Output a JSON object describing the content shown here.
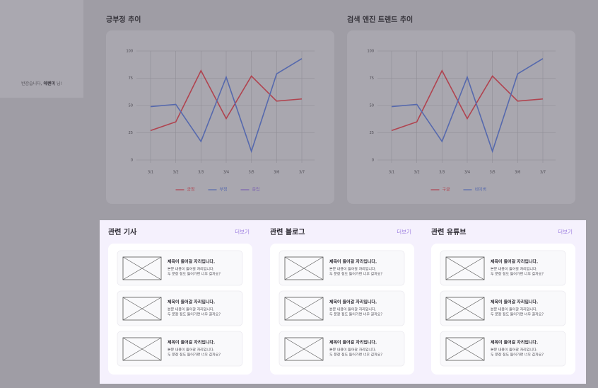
{
  "sidebar": {
    "greeting_prefix": "반갑습니다, ",
    "user_name": "에렌미",
    "greeting_suffix": " 님!"
  },
  "chart_data": [
    {
      "type": "line",
      "title": "긍부정 추이",
      "categories": [
        "3/1",
        "3/2",
        "3/3",
        "3/4",
        "3/5",
        "3/6",
        "3/7"
      ],
      "ylim": [
        0,
        100
      ],
      "yticks": [
        0,
        25,
        50,
        75,
        100
      ],
      "grid": true,
      "legend": "bottom",
      "series": [
        {
          "name": "긍정",
          "color": "#b0434f",
          "values": [
            27,
            35,
            82,
            38,
            77,
            54,
            56
          ]
        },
        {
          "name": "부정",
          "color": "#5669ad",
          "values": [
            49,
            51,
            17,
            76,
            8,
            79,
            93
          ]
        },
        {
          "name": "중립",
          "color": "#7b62b0",
          "values": [
            null,
            null,
            null,
            null,
            null,
            null,
            null
          ]
        }
      ]
    },
    {
      "type": "line",
      "title": "검색 엔진 트렌드 추이",
      "categories": [
        "3/1",
        "3/2",
        "3/3",
        "3/4",
        "3/5",
        "3/6",
        "3/7"
      ],
      "ylim": [
        0,
        100
      ],
      "yticks": [
        0,
        25,
        50,
        75,
        100
      ],
      "grid": true,
      "legend": "bottom",
      "series": [
        {
          "name": "구글",
          "color": "#b0434f",
          "values": [
            27,
            35,
            82,
            38,
            77,
            54,
            56
          ]
        },
        {
          "name": "네이버",
          "color": "#5669ad",
          "values": [
            49,
            51,
            17,
            76,
            8,
            79,
            93
          ]
        }
      ]
    }
  ],
  "sections": [
    {
      "title": "관련 기사",
      "more": "더보기",
      "items": [
        {
          "title": "제목이 들어갈 자리입니다.",
          "body": [
            "본문 내용이 들어갈 자리입니다.",
            "두 문장 정도 들어가면 너무 길까요?"
          ]
        },
        {
          "title": "제목이 들어갈 자리입니다.",
          "body": [
            "본문 내용이 들어갈 자리입니다.",
            "두 문장 정도 들어가면 너무 길까요?"
          ]
        },
        {
          "title": "제목이 들어갈 자리입니다.",
          "body": [
            "본문 내용이 들어갈 자리입니다.",
            "두 문장 정도 들어가면 너무 길까요?"
          ]
        }
      ]
    },
    {
      "title": "관련 블로그",
      "more": "더보기",
      "items": [
        {
          "title": "제목이 들어갈 자리입니다.",
          "body": [
            "본문 내용이 들어갈 자리입니다.",
            "두 문장 정도 들어가면 너무 길까요?"
          ]
        },
        {
          "title": "제목이 들어갈 자리입니다.",
          "body": [
            "본문 내용이 들어갈 자리입니다.",
            "두 문장 정도 들어가면 너무 길까요?"
          ]
        },
        {
          "title": "제목이 들어갈 자리입니다.",
          "body": [
            "본문 내용이 들어갈 자리입니다.",
            "두 문장 정도 들어가면 너무 길까요?"
          ]
        }
      ]
    },
    {
      "title": "관련 유튜브",
      "more": "더보기",
      "items": [
        {
          "title": "제목이 들어갈 자리입니다.",
          "body": [
            "본문 내용이 들어갈 자리입니다.",
            "두 문장 정도 들어가면 너무 길까요?"
          ]
        },
        {
          "title": "제목이 들어갈 자리입니다.",
          "body": [
            "본문 내용이 들어갈 자리입니다.",
            "두 문장 정도 들어가면 너무 길까요?"
          ]
        },
        {
          "title": "제목이 들어갈 자리입니다.",
          "body": [
            "본문 내용이 들어갈 자리입니다.",
            "두 문장 정도 들어가면 너무 길까요?"
          ]
        }
      ]
    }
  ]
}
